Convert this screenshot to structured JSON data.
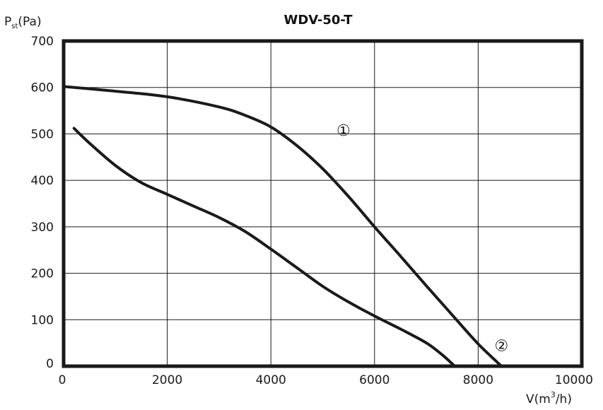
{
  "chart_data": {
    "type": "line",
    "title": "WDV-50-T",
    "ylabel": {
      "main": "P",
      "sub": "st",
      "unit": "(Pa)"
    },
    "xlabel": {
      "main": "V(m",
      "sup": "3",
      "unit": "/h)"
    },
    "xlim": [
      0,
      10000
    ],
    "ylim": [
      0,
      700
    ],
    "x_ticks": [
      0,
      2000,
      4000,
      6000,
      8000,
      10000
    ],
    "y_ticks": [
      0,
      100,
      200,
      300,
      400,
      500,
      600,
      700
    ],
    "x_tick_labels": [
      "0",
      "2000",
      "4000",
      "6000",
      "8000",
      "10000"
    ],
    "y_tick_labels": [
      "0",
      "100",
      "200",
      "300",
      "400",
      "500",
      "600",
      "700"
    ],
    "grid": true,
    "series": [
      {
        "name": "①",
        "points": [
          [
            0,
            602
          ],
          [
            1000,
            592
          ],
          [
            2000,
            580
          ],
          [
            3000,
            558
          ],
          [
            3500,
            540
          ],
          [
            4000,
            515
          ],
          [
            4500,
            475
          ],
          [
            5000,
            425
          ],
          [
            5500,
            365
          ],
          [
            6000,
            300
          ],
          [
            6500,
            237
          ],
          [
            7000,
            173
          ],
          [
            7500,
            110
          ],
          [
            8000,
            48
          ],
          [
            8450,
            0
          ]
        ]
      },
      {
        "name": "②",
        "points": [
          [
            200,
            512
          ],
          [
            500,
            480
          ],
          [
            1000,
            432
          ],
          [
            1500,
            395
          ],
          [
            2000,
            370
          ],
          [
            2500,
            345
          ],
          [
            3000,
            320
          ],
          [
            3500,
            290
          ],
          [
            4000,
            252
          ],
          [
            4500,
            212
          ],
          [
            5000,
            172
          ],
          [
            5500,
            138
          ],
          [
            6000,
            108
          ],
          [
            6500,
            80
          ],
          [
            7000,
            50
          ],
          [
            7300,
            25
          ],
          [
            7550,
            0
          ]
        ]
      }
    ],
    "annotations": [
      {
        "label": "①",
        "x": 5400,
        "y": 505
      },
      {
        "label": "②",
        "x": 8450,
        "y": 42
      }
    ]
  }
}
